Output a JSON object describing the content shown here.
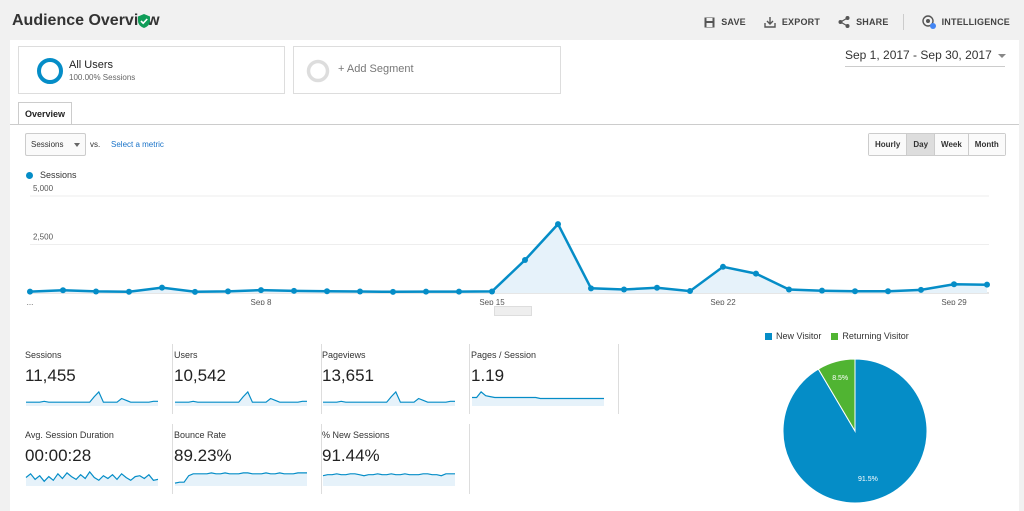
{
  "header": {
    "title": "Audience Overview",
    "actions": [
      {
        "label": "SAVE",
        "icon": "save-icon"
      },
      {
        "label": "EXPORT",
        "icon": "export-icon"
      },
      {
        "label": "SHARE",
        "icon": "share-icon"
      },
      {
        "label": "INTELLIGENCE",
        "icon": "intelligence-icon"
      }
    ]
  },
  "segments": {
    "all_users": {
      "name": "All Users",
      "sub": "100.00% Sessions"
    },
    "add_label": "+ Add Segment"
  },
  "date_range": "Sep 1, 2017 - Sep 30, 2017",
  "tabs": [
    {
      "label": "Overview"
    }
  ],
  "controls": {
    "metric": "Sessions",
    "vs": "vs.",
    "select_metric": "Select a metric",
    "granularity": [
      "Hourly",
      "Day",
      "Week",
      "Month"
    ],
    "active_granularity": "Day"
  },
  "colors": {
    "primary": "#058dc7",
    "secondary": "#50b432",
    "fill": "#e6f2fa"
  },
  "chart_data": [
    {
      "type": "line",
      "series": [
        {
          "name": "Sessions",
          "values": [
            70,
            140,
            80,
            65,
            280,
            60,
            85,
            150,
            110,
            90,
            75,
            60,
            70,
            70,
            80,
            1700,
            3550,
            240,
            180,
            270,
            100,
            1350,
            1000,
            180,
            120,
            90,
            90,
            160,
            450,
            430
          ]
        }
      ],
      "x": [
        1,
        2,
        3,
        4,
        5,
        6,
        7,
        8,
        9,
        10,
        11,
        12,
        13,
        14,
        15,
        16,
        17,
        18,
        19,
        20,
        21,
        22,
        23,
        24,
        25,
        26,
        27,
        28,
        29,
        30
      ],
      "x_tick_labels": [
        "...",
        "Sep 8",
        "Sep 15",
        "Sep 22",
        "Sep 29"
      ],
      "y_tick_labels": [
        "5,000",
        "2,500"
      ],
      "ylim": [
        0,
        5000
      ]
    },
    {
      "type": "pie",
      "categories": [
        "New Visitor",
        "Returning Visitor"
      ],
      "values": [
        91.5,
        8.5
      ],
      "labels": [
        "91.5%",
        "8.5%"
      ]
    }
  ],
  "metrics": [
    {
      "label": "Sessions",
      "value": "11,455",
      "spark": [
        3,
        3,
        3,
        3,
        4,
        3,
        3,
        3,
        3,
        3,
        3,
        3,
        3,
        3,
        3,
        9,
        14,
        3,
        3,
        3,
        3,
        7,
        5,
        3,
        3,
        3,
        3,
        3,
        4,
        4
      ]
    },
    {
      "label": "Users",
      "value": "10,542",
      "spark": [
        3,
        3,
        3,
        3,
        4,
        3,
        3,
        3,
        3,
        3,
        3,
        3,
        3,
        3,
        3,
        9,
        14,
        3,
        3,
        3,
        3,
        7,
        5,
        3,
        3,
        3,
        3,
        3,
        4,
        4
      ]
    },
    {
      "label": "Pageviews",
      "value": "13,651",
      "spark": [
        3,
        3,
        3,
        3,
        4,
        3,
        3,
        3,
        3,
        3,
        3,
        3,
        3,
        3,
        3,
        9,
        14,
        3,
        3,
        3,
        3,
        7,
        5,
        3,
        3,
        3,
        3,
        3,
        4,
        4
      ]
    },
    {
      "label": "Pages / Session",
      "value": "1.19",
      "spark": [
        8,
        8,
        14,
        10,
        9,
        8,
        8,
        8,
        8,
        8,
        8,
        8,
        8,
        8,
        8,
        7,
        7,
        7,
        7,
        7,
        7,
        7,
        7,
        7,
        7,
        7,
        7,
        7,
        7,
        7
      ]
    },
    {
      "label": "Avg. Session Duration",
      "value": "00:00:28",
      "spark": [
        8,
        12,
        6,
        10,
        4,
        9,
        5,
        12,
        7,
        13,
        9,
        6,
        11,
        7,
        14,
        8,
        5,
        10,
        7,
        11,
        6,
        12,
        8,
        5,
        9,
        10,
        7,
        11,
        5,
        6
      ]
    },
    {
      "label": "Bounce Rate",
      "value": "89.23%",
      "spark": [
        2,
        3,
        3,
        10,
        12,
        12,
        12,
        12,
        13,
        12,
        12,
        13,
        12,
        12,
        12,
        13,
        13,
        12,
        12,
        12,
        13,
        12,
        12,
        13,
        12,
        12,
        12,
        13,
        13,
        13
      ]
    },
    {
      "label": "% New Sessions",
      "value": "91.44%",
      "spark": [
        10,
        11,
        11,
        12,
        11,
        11,
        12,
        12,
        11,
        10,
        11,
        11,
        12,
        11,
        11,
        12,
        11,
        11,
        12,
        11,
        11,
        11,
        12,
        12,
        11,
        11,
        10,
        12,
        12,
        12
      ]
    }
  ]
}
